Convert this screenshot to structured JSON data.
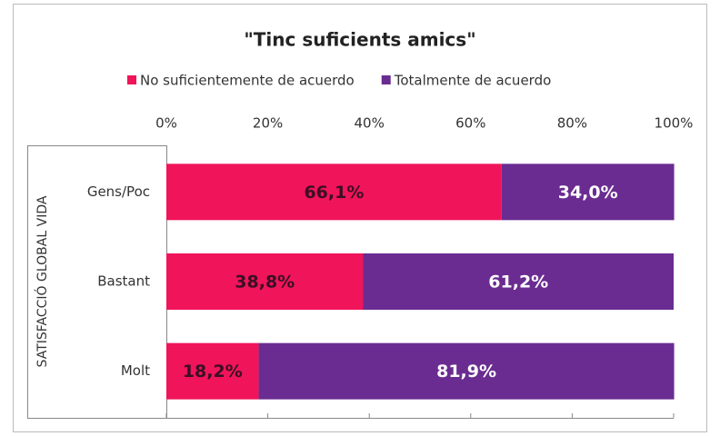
{
  "chart_data": {
    "type": "stacked_barh",
    "title": "\"Tinc suficients amics\"",
    "y_label": "SATISFACCIÓ GLOBAL VIDA",
    "categories": [
      "Gens/Poc",
      "Bastant",
      "Molt"
    ],
    "series": [
      {
        "name": "No suficientemente de acuerdo",
        "color": "#f0145a",
        "values": [
          66.1,
          38.8,
          18.2
        ],
        "value_labels": [
          "66,1%",
          "38,8%",
          "18,2%"
        ]
      },
      {
        "name": "Totalmente de acuerdo",
        "color": "#6a2c91",
        "values": [
          34.0,
          61.2,
          81.9
        ],
        "value_labels": [
          "34,0%",
          "61,2%",
          "81,9%"
        ]
      }
    ],
    "xlim": [
      0,
      100
    ],
    "xticks": [
      {
        "value": 0,
        "label": "0%"
      },
      {
        "value": 20,
        "label": "20%"
      },
      {
        "value": 40,
        "label": "40%"
      },
      {
        "value": 60,
        "label": "60%"
      },
      {
        "value": 80,
        "label": "80%"
      },
      {
        "value": 100,
        "label": "100%"
      }
    ],
    "legend": "top"
  }
}
